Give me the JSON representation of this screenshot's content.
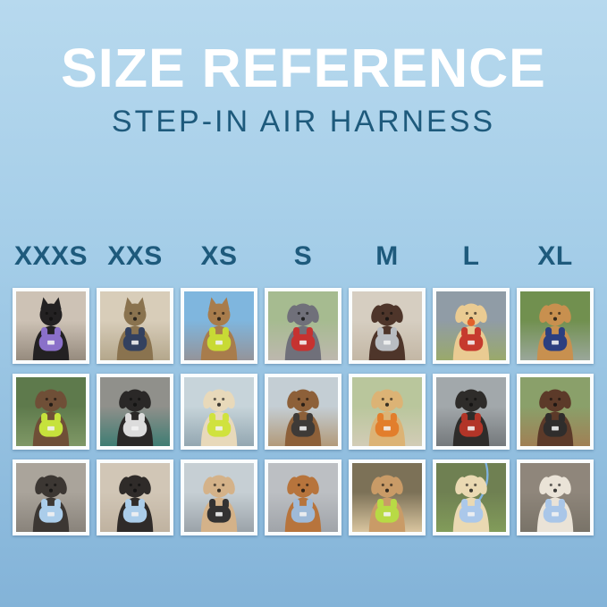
{
  "theme": {
    "bg_top": "#b7d9ee",
    "bg_mid": "#a4cde8",
    "bg_bottom": "#83b3d8",
    "title_color": "#ffffff",
    "teal": "#1e5a7c",
    "frame": "#fafdfe"
  },
  "header": {
    "title": "SIZE REFERENCE",
    "subtitle": "STEP-IN AIR HARNESS"
  },
  "size_labels": [
    "XXXS",
    "XXS",
    "XS",
    "S",
    "M",
    "L",
    "XL"
  ],
  "grid": {
    "rows": 3,
    "cols": 7,
    "cells": [
      {
        "row": 1,
        "size": "XXXS",
        "species": "cat",
        "animal": "Black kitten",
        "harness_color_name": "purple",
        "scene": "indoor hallway",
        "fur": "#232122",
        "harness": "#8a70c9",
        "bg_top": "#cdc2b5",
        "bg_bottom": "#968b7e",
        "accessory": null
      },
      {
        "row": 1,
        "size": "XXS",
        "species": "cat",
        "animal": "Brown tabby cat",
        "harness_color_name": "navy",
        "scene": "window with beige curtains",
        "fur": "#8a734f",
        "harness": "#33415f",
        "bg_top": "#d8cdb9",
        "bg_bottom": "#b4a78c",
        "accessory": null
      },
      {
        "row": 1,
        "size": "XS",
        "species": "cat",
        "animal": "Bengal cat",
        "harness_color_name": "lime",
        "scene": "car back seat with blue sky",
        "fur": "#a87c4c",
        "harness": "#c8da35",
        "bg_top": "#7fb6de",
        "bg_bottom": "#94949a",
        "accessory": null
      },
      {
        "row": 1,
        "size": "S",
        "species": "dog",
        "animal": "Grey French Bulldog",
        "harness_color_name": "red",
        "scene": "sidewalk and lawn",
        "fur": "#70707a",
        "harness": "#c63230",
        "bg_top": "#a6bb90",
        "bg_bottom": "#bdb8ae",
        "accessory": null
      },
      {
        "row": 1,
        "size": "M",
        "species": "dog",
        "animal": "Chocolate long-haired Dachshund",
        "harness_color_name": "grey",
        "scene": "stone patio",
        "fur": "#4e352a",
        "harness": "#b9bdc2",
        "bg_top": "#d6cec1",
        "bg_bottom": "#c3b7a5",
        "accessory": null
      },
      {
        "row": 1,
        "size": "L",
        "species": "dog",
        "animal": "Cream Shiba Inu",
        "harness_color_name": "red",
        "scene": "grass field under cloudy sky",
        "fur": "#eacb92",
        "harness": "#c63a2e",
        "bg_top": "#909ca6",
        "bg_bottom": "#9aa96b",
        "accessory": "ball"
      },
      {
        "row": 1,
        "size": "XL",
        "species": "dog",
        "animal": "Golden Retriever",
        "harness_color_name": "navy",
        "scene": "garden path with yellow flowers",
        "fur": "#c8904f",
        "harness": "#2c3f80",
        "bg_top": "#71904f",
        "bg_bottom": "#9aa79a",
        "accessory": null
      },
      {
        "row": 2,
        "size": "XXXS",
        "species": "dog",
        "animal": "Chocolate wavy-coat puppy",
        "harness_color_name": "lime",
        "scene": "green garden",
        "fur": "#6f4f37",
        "harness": "#c6e23c",
        "bg_top": "#5e7a4c",
        "bg_bottom": "#7f9866",
        "accessory": null
      },
      {
        "row": 2,
        "size": "XXS",
        "species": "dog",
        "animal": "Black puppy",
        "harness_color_name": "white",
        "scene": "wicker chair with teal blanket",
        "fur": "#2a2827",
        "harness": "#dcdcdc",
        "bg_top": "#90908b",
        "bg_bottom": "#3f7d73",
        "accessory": null
      },
      {
        "row": 2,
        "size": "XS",
        "species": "dog",
        "animal": "Cream long-haired Dachshund",
        "harness_color_name": "lime",
        "scene": "harbor boardwalk",
        "fur": "#e8d9ba",
        "harness": "#d0e23e",
        "bg_top": "#c7d4da",
        "bg_bottom": "#93a7b1",
        "accessory": null
      },
      {
        "row": 2,
        "size": "S",
        "species": "dog",
        "animal": "Brown long-haired Dachshund",
        "harness_color_name": "black",
        "scene": "wooden dock by water",
        "fur": "#8d6039",
        "harness": "#3e3a37",
        "bg_top": "#c4ced4",
        "bg_bottom": "#b29a7a",
        "accessory": null
      },
      {
        "row": 2,
        "size": "M",
        "species": "dog",
        "animal": "Golden Retriever puppy",
        "harness_color_name": "orange",
        "scene": "park lawn",
        "fur": "#dcb375",
        "harness": "#e27e2c",
        "bg_top": "#b9c69c",
        "bg_bottom": "#d2ccb6",
        "accessory": null
      },
      {
        "row": 2,
        "size": "L",
        "species": "dog",
        "animal": "Black and tan dog",
        "harness_color_name": "red",
        "scene": "corrugated metal tunnel",
        "fur": "#2e2c2a",
        "harness": "#b23528",
        "bg_top": "#a2a8ab",
        "bg_bottom": "#75797c",
        "accessory": null
      },
      {
        "row": 2,
        "size": "XL",
        "species": "dog",
        "animal": "Chocolate and white Aussie mix",
        "harness_color_name": "black",
        "scene": "wooden deck",
        "fur": "#5c3a29",
        "harness": "#2f2d2c",
        "bg_top": "#8aa06a",
        "bg_bottom": "#a08055",
        "accessory": null
      },
      {
        "row": 3,
        "size": "XXXS",
        "species": "dog",
        "animal": "Yorkie puppy",
        "harness_color_name": "light blue",
        "scene": "sunny pavement",
        "fur": "#3c3733",
        "harness": "#abcdea",
        "bg_top": "#aaa49b",
        "bg_bottom": "#89837b",
        "accessory": null
      },
      {
        "row": 3,
        "size": "XXS",
        "species": "dog",
        "animal": "Black and tan Dachshund puppy",
        "harness_color_name": "light blue",
        "scene": "beige sofa",
        "fur": "#2f2b29",
        "harness": "#abcdea",
        "bg_top": "#d1c6b6",
        "bg_bottom": "#bfb2a0",
        "accessory": null
      },
      {
        "row": 3,
        "size": "XS",
        "species": "dog",
        "animal": "Apricot Maltipoo puppy",
        "harness_color_name": "black",
        "scene": "grey boardwalk",
        "fur": "#d4b289",
        "harness": "#333232",
        "bg_top": "#c6cfd4",
        "bg_bottom": "#9ba3a9",
        "accessory": null
      },
      {
        "row": 3,
        "size": "S",
        "species": "dog",
        "animal": "Red Dachshund",
        "harness_color_name": "grey-blue",
        "scene": "concrete path",
        "fur": "#b7743c",
        "harness": "#9fbad8",
        "bg_top": "#bcbfc3",
        "bg_bottom": "#a0a4a9",
        "accessory": null
      },
      {
        "row": 3,
        "size": "M",
        "species": "dog",
        "animal": "Apricot Goldendoodle",
        "harness_color_name": "lime",
        "scene": "sandy path with shrubs",
        "fur": "#c99b67",
        "harness": "#b8da45",
        "bg_top": "#7c7157",
        "bg_bottom": "#d9c59f",
        "accessory": null
      },
      {
        "row": 3,
        "size": "L",
        "species": "dog",
        "animal": "Cream Golden Retriever puppy",
        "harness_color_name": "light blue",
        "scene": "lawn with blue leash",
        "fur": "#ead9b2",
        "harness": "#abc8ea",
        "bg_top": "#6f8052",
        "bg_bottom": "#829c5a",
        "accessory": "leash"
      },
      {
        "row": 3,
        "size": "XL",
        "species": "dog",
        "animal": "White shepherd mix",
        "harness_color_name": "light blue",
        "scene": "evening city street",
        "fur": "#eae3d7",
        "harness": "#a9c6e8",
        "bg_top": "#8f867b",
        "bg_bottom": "#797368",
        "accessory": null
      }
    ]
  }
}
